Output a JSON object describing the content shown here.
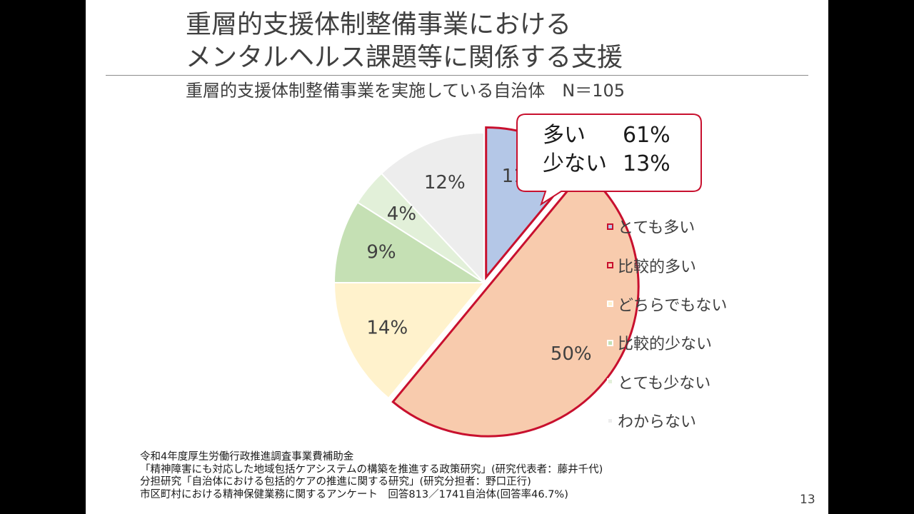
{
  "slide": {
    "title_line1": "重層的支援体制整備事業における",
    "title_line2": "メンタルヘルス課題等に関係する支援",
    "subtitle": "重層的支援体制整備事業を実施している自治体　N＝105",
    "callout": {
      "rows": [
        {
          "label": "多い",
          "value": "61%"
        },
        {
          "label": "少ない",
          "value": "13%"
        }
      ]
    },
    "footer_lines": [
      "令和4年度厚生労働行政推進調査事業費補助金",
      "「精神障害にも対応した地域包括ケアシステムの構築を推進する政策研究」(研究代表者：藤井千代)",
      "分担研究「自治体における包括的ケアの推進に関する研究」(研究分担者：野口正行)",
      "市区町村における精神保健業務に関するアンケート　回答813／1741自治体(回答率46.7%)"
    ],
    "page_number": "13"
  },
  "chart_data": {
    "type": "pie",
    "start_angle_deg": 0,
    "direction": "clockwise",
    "exploded": [
      "とても多い",
      "比較的多い"
    ],
    "highlight_color": "#c8102e",
    "legend_position": "right",
    "slices": [
      {
        "label": "とても多い",
        "value": 11,
        "display": "11%",
        "color": "#b4c7e7",
        "highlight": true
      },
      {
        "label": "比較的多い",
        "value": 50,
        "display": "50%",
        "color": "#f8cbad",
        "highlight": true
      },
      {
        "label": "どちらでもない",
        "value": 14,
        "display": "14%",
        "color": "#fff2cc",
        "highlight": false
      },
      {
        "label": "比較的少ない",
        "value": 9,
        "display": "9%",
        "color": "#c5e0b4",
        "highlight": false
      },
      {
        "label": "とても少ない",
        "value": 4,
        "display": "4%",
        "color": "#e2f0d9",
        "highlight": false
      },
      {
        "label": "わからない",
        "value": 12,
        "display": "12%",
        "color": "#ededed",
        "highlight": false
      }
    ]
  }
}
